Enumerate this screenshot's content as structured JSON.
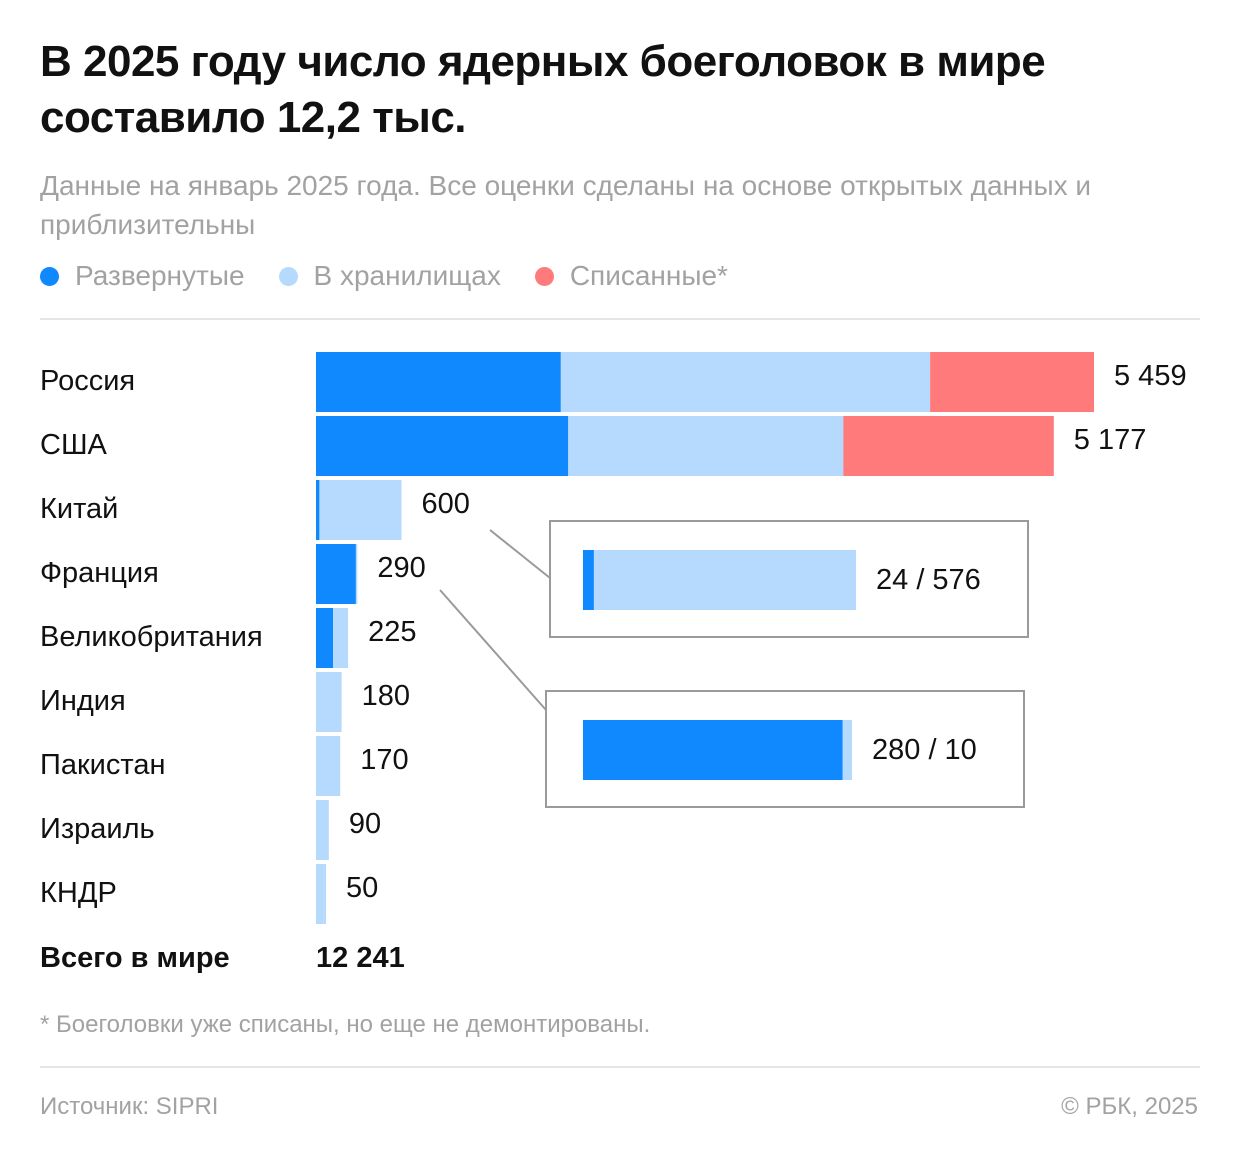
{
  "title": "В 2025 году число ядерных боеголовок в мире составило 12,2 тыс.",
  "subtitle": "Данные на январь 2025 года. Все оценки сделаны на основе открытых данных и приблизительны",
  "colors": {
    "deployed": "#1089ff",
    "stored": "#b6dafd",
    "retired": "#ff7a7a",
    "text": "#111111",
    "muted": "#a2a2a2",
    "rule": "#e6e6e6",
    "box_border": "#9a9a9a"
  },
  "chart_data": {
    "type": "bar",
    "orientation": "horizontal",
    "stacked": true,
    "title": "В 2025 году число ядерных боеголовок в мире составило 12,2 тыс.",
    "legend_position": "top-left",
    "grid": false,
    "legend": [
      "Развернутые",
      "В хранилищах",
      "Списанные*"
    ],
    "categories": [
      "Россия",
      "США",
      "Китай",
      "Франция",
      "Великобритания",
      "Индия",
      "Пакистан",
      "Израиль",
      "КНДР"
    ],
    "series": [
      {
        "name": "Развернутые",
        "values": [
          1718,
          1770,
          24,
          280,
          120,
          0,
          0,
          0,
          0
        ]
      },
      {
        "name": "В хранилищах",
        "values": [
          2591,
          1930,
          576,
          10,
          105,
          180,
          170,
          90,
          50
        ]
      },
      {
        "name": "Списанные*",
        "values": [
          1150,
          1477,
          0,
          0,
          0,
          0,
          0,
          0,
          0
        ]
      }
    ],
    "totals": [
      "5 459",
      "5 177",
      "600",
      "290",
      "225",
      "180",
      "170",
      "90",
      "50"
    ],
    "xlim": [
      0,
      5459
    ],
    "callouts": [
      {
        "country": "Китай",
        "deployed": 24,
        "stored": 576,
        "label": "24 / 576"
      },
      {
        "country": "Франция",
        "deployed": 280,
        "stored": 10,
        "label": "280 / 10"
      }
    ],
    "total_label": "Всего в мире",
    "total_value": "12 241"
  },
  "footnote": "* Боеголовки уже списаны, но еще не демонтированы.",
  "source": "Источник: SIPRI",
  "copyright": "© РБК, 2025"
}
